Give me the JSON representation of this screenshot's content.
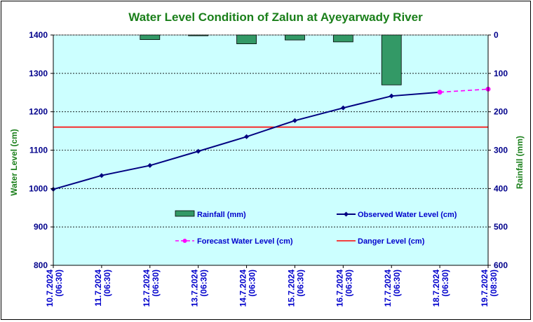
{
  "chart_data": {
    "type": "line",
    "title": "Water Level Condition of Zalun at Ayeyarwady River",
    "ylabel": "Water Level (cm)",
    "y2label": "Rainfall (mm)",
    "categories": [
      [
        "10.7.2024",
        "(06:30)"
      ],
      [
        "11.7.2024",
        "(06:30)"
      ],
      [
        "12.7.2024",
        "(06:30)"
      ],
      [
        "13.7.2024",
        "(06:30)"
      ],
      [
        "14.7.2024",
        "(06:30)"
      ],
      [
        "15.7.2024",
        "(06:30)"
      ],
      [
        "16.7.2024",
        "(06:30)"
      ],
      [
        "17.7.2024",
        "(06:30)"
      ],
      [
        "18.7.2024",
        "(06:30)"
      ],
      [
        "19.7.2024",
        "(08:30)"
      ]
    ],
    "ylim": [
      800,
      1400
    ],
    "yticks": [
      800,
      900,
      1000,
      1100,
      1200,
      1300,
      1400
    ],
    "y2lim": [
      0,
      600
    ],
    "y2ticks": [
      0,
      100,
      200,
      300,
      400,
      500,
      600
    ],
    "y2_reversed": true,
    "grid": true,
    "series": [
      {
        "name": "Rainfall (mm)",
        "kind": "bar",
        "axis": "right",
        "color": "#339966",
        "values": [
          null,
          null,
          12,
          2,
          23,
          13,
          18,
          130,
          null,
          null
        ]
      },
      {
        "name": "Observed Water Level (cm)",
        "kind": "line",
        "axis": "left",
        "color": "#000080",
        "values": [
          998,
          1034,
          1060,
          1097,
          1135,
          1177,
          1210,
          1241,
          1251,
          null
        ]
      },
      {
        "name": "Forecast Water Level (cm)",
        "kind": "dashed-line",
        "axis": "left",
        "color": "#ff00ff",
        "values": [
          null,
          null,
          null,
          null,
          null,
          null,
          null,
          null,
          1251,
          1259
        ]
      },
      {
        "name": "Danger Level (cm)",
        "kind": "hline",
        "axis": "left",
        "color": "#ff0000",
        "value": 1160
      }
    ],
    "legend_position": "inside-lower"
  },
  "colors": {
    "plot_background": "#ccffff",
    "title": "#1a7f1a",
    "tick_labels": "#00008b",
    "date_labels": "#0000cc"
  }
}
